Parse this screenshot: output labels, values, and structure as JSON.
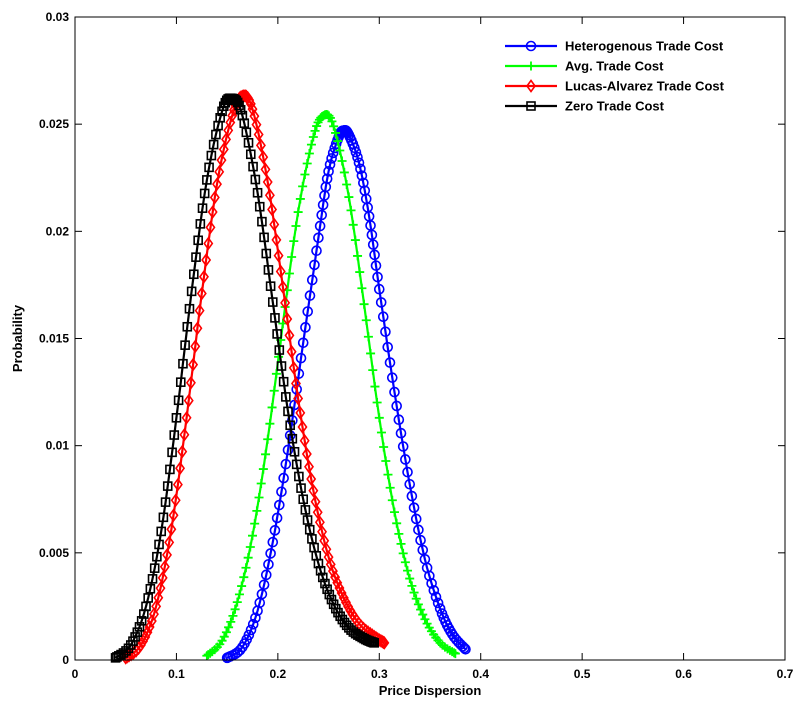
{
  "chart_data": {
    "type": "line",
    "title": "",
    "xlabel": "Price Dispersion",
    "ylabel": "Probability",
    "xlim": [
      0,
      0.7
    ],
    "ylim": [
      0,
      0.03
    ],
    "xticks": [
      0,
      0.1,
      0.2,
      0.3,
      0.4,
      0.5,
      0.6,
      0.7
    ],
    "xtick_labels": [
      "0",
      "0.1",
      "0.2",
      "0.3",
      "0.4",
      "0.5",
      "0.6",
      "0.7"
    ],
    "yticks": [
      0,
      0.005,
      0.01,
      0.015,
      0.02,
      0.025,
      0.03
    ],
    "ytick_labels": [
      "0",
      "0.005",
      "0.01",
      "0.015",
      "0.02",
      "0.025",
      "0.03"
    ],
    "grid": false,
    "legend_position": "top-right",
    "series": [
      {
        "name": "Heterogenous Trade Cost",
        "color": "#0000ff",
        "marker": "circle",
        "x": [
          0.15,
          0.165,
          0.18,
          0.195,
          0.21,
          0.225,
          0.24,
          0.25,
          0.26,
          0.265,
          0.27,
          0.28,
          0.29,
          0.3,
          0.315,
          0.33,
          0.345,
          0.36,
          0.372,
          0.385
        ],
        "y": [
          0.0001,
          0.0006,
          0.0023,
          0.0055,
          0.0098,
          0.0148,
          0.0197,
          0.0228,
          0.0244,
          0.0247,
          0.0245,
          0.0232,
          0.0207,
          0.0173,
          0.0125,
          0.0082,
          0.0047,
          0.0024,
          0.0012,
          0.0005
        ]
      },
      {
        "name": "Avg. Trade Cost",
        "color": "#00ff00",
        "marker": "plus",
        "x": [
          0.13,
          0.145,
          0.16,
          0.175,
          0.19,
          0.205,
          0.22,
          0.235,
          0.245,
          0.255,
          0.27,
          0.285,
          0.3,
          0.315,
          0.33,
          0.345,
          0.36,
          0.375
        ],
        "y": [
          0.0002,
          0.0009,
          0.0027,
          0.0058,
          0.0103,
          0.0157,
          0.0209,
          0.0244,
          0.0254,
          0.0249,
          0.0216,
          0.0166,
          0.0113,
          0.0069,
          0.0038,
          0.0019,
          0.0008,
          0.0003
        ]
      },
      {
        "name": "Lucas-Alvarez Trade Cost",
        "color": "#ff0000",
        "marker": "diamond",
        "x": [
          0.05,
          0.065,
          0.08,
          0.095,
          0.11,
          0.125,
          0.14,
          0.155,
          0.165,
          0.175,
          0.19,
          0.205,
          0.22,
          0.235,
          0.25,
          0.265,
          0.28,
          0.295,
          0.305
        ],
        "y": [
          0.0001,
          0.0007,
          0.0025,
          0.0061,
          0.0113,
          0.0171,
          0.0222,
          0.0254,
          0.0263,
          0.0257,
          0.0223,
          0.0174,
          0.0122,
          0.0079,
          0.0048,
          0.0029,
          0.0017,
          0.0011,
          0.0008
        ]
      },
      {
        "name": "Zero Trade Cost",
        "color": "#000000",
        "marker": "square",
        "x": [
          0.04,
          0.055,
          0.07,
          0.085,
          0.1,
          0.115,
          0.13,
          0.145,
          0.155,
          0.165,
          0.18,
          0.195,
          0.21,
          0.225,
          0.24,
          0.255,
          0.27,
          0.285,
          0.295
        ],
        "y": [
          0.0001,
          0.0007,
          0.0025,
          0.006,
          0.0113,
          0.0172,
          0.0224,
          0.0256,
          0.0262,
          0.0254,
          0.0218,
          0.0167,
          0.0116,
          0.0075,
          0.0045,
          0.0026,
          0.0015,
          0.001,
          0.0008
        ]
      }
    ]
  }
}
